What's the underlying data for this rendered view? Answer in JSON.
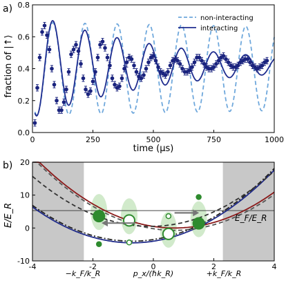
{
  "chart_data": [
    {
      "panel": "a)",
      "type": "line",
      "xlabel": "time (μs)",
      "ylabel": "fraction of |↑⟩",
      "xlim": [
        0,
        1000
      ],
      "ylim": [
        0,
        0.8
      ],
      "x_ticks": [
        0,
        250,
        500,
        750,
        1000
      ],
      "y_ticks": [
        0.0,
        0.2,
        0.4,
        0.6,
        0.8
      ],
      "x_tick_labels": [
        "0",
        "250",
        "500",
        "750",
        "1000"
      ],
      "y_tick_labels": [
        "0.0",
        "0.2",
        "0.4",
        "0.6",
        "0.8"
      ],
      "legend_position": "top-right",
      "series": [
        {
          "name": "non-interacting",
          "style": "dashed",
          "color": "#6fa8dc",
          "model": {
            "base": 0.4,
            "amp": 0.29,
            "decay_us": 10000,
            "freq_per_us": 0.00752,
            "phase": 2.77,
            "t0": 10
          }
        },
        {
          "name": "interacting",
          "style": "solid",
          "color": "#1f2d8f",
          "model": {
            "base": 0.42,
            "amp": 0.32,
            "decay_us": 560,
            "freq_per_us": 0.00752,
            "phase": 2.77,
            "t0": 10
          }
        }
      ],
      "data_points": {
        "color": "#1a237e",
        "x": [
          10,
          20,
          30,
          40,
          50,
          60,
          70,
          80,
          90,
          100,
          110,
          120,
          130,
          140,
          150,
          160,
          170,
          180,
          190,
          200,
          210,
          220,
          230,
          240,
          250,
          260,
          270,
          280,
          290,
          300,
          310,
          320,
          330,
          340,
          350,
          360,
          370,
          380,
          390,
          400,
          410,
          420,
          430,
          440,
          450,
          460,
          470,
          480,
          490,
          500,
          510,
          520,
          530,
          540,
          550,
          560,
          570,
          580,
          590,
          600,
          610,
          620,
          630,
          640,
          650,
          660,
          670,
          680,
          690,
          700,
          710,
          720,
          730,
          740,
          750,
          760,
          770,
          780,
          790,
          800,
          810,
          820,
          830,
          840,
          850,
          860,
          870,
          880,
          890,
          900,
          910,
          920,
          930,
          940,
          950,
          960,
          970
        ],
        "y": [
          0.06,
          0.28,
          0.47,
          0.63,
          0.67,
          0.61,
          0.52,
          0.4,
          0.3,
          0.2,
          0.14,
          0.14,
          0.19,
          0.27,
          0.38,
          0.49,
          0.52,
          0.55,
          0.51,
          0.43,
          0.34,
          0.27,
          0.24,
          0.26,
          0.32,
          0.38,
          0.47,
          0.55,
          0.57,
          0.53,
          0.47,
          0.42,
          0.34,
          0.3,
          0.28,
          0.29,
          0.34,
          0.4,
          0.44,
          0.47,
          0.46,
          0.42,
          0.38,
          0.35,
          0.34,
          0.36,
          0.4,
          0.44,
          0.47,
          0.48,
          0.45,
          0.41,
          0.38,
          0.37,
          0.36,
          0.38,
          0.42,
          0.45,
          0.46,
          0.45,
          0.43,
          0.4,
          0.38,
          0.38,
          0.39,
          0.41,
          0.44,
          0.47,
          0.47,
          0.45,
          0.43,
          0.41,
          0.4,
          0.4,
          0.41,
          0.43,
          0.45,
          0.47,
          0.48,
          0.46,
          0.44,
          0.42,
          0.41,
          0.41,
          0.42,
          0.44,
          0.45,
          0.46,
          0.46,
          0.44,
          0.42,
          0.41,
          0.4,
          0.41,
          0.42,
          0.44,
          0.45
        ],
        "err": [
          0.02,
          0.02,
          0.02,
          0.02,
          0.02,
          0.02,
          0.02,
          0.02,
          0.02,
          0.02,
          0.02,
          0.02,
          0.02,
          0.02,
          0.02,
          0.02,
          0.02,
          0.02,
          0.02,
          0.02,
          0.02,
          0.02,
          0.02,
          0.02,
          0.02,
          0.02,
          0.02,
          0.02,
          0.02,
          0.02,
          0.02,
          0.02,
          0.02,
          0.02,
          0.02,
          0.02,
          0.02,
          0.02,
          0.03,
          0.02,
          0.02,
          0.02,
          0.02,
          0.02,
          0.02,
          0.02,
          0.02,
          0.02,
          0.02,
          0.02,
          0.02,
          0.02,
          0.02,
          0.02,
          0.02,
          0.02,
          0.02,
          0.02,
          0.02,
          0.02,
          0.02,
          0.02,
          0.02,
          0.02,
          0.02,
          0.02,
          0.02,
          0.02,
          0.02,
          0.02,
          0.02,
          0.02,
          0.02,
          0.02,
          0.02,
          0.02,
          0.02,
          0.02,
          0.02,
          0.02,
          0.02,
          0.02,
          0.02,
          0.02,
          0.02,
          0.02,
          0.02,
          0.02,
          0.02,
          0.02,
          0.02,
          0.02,
          0.02,
          0.02,
          0.02,
          0.02,
          0.02
        ]
      }
    },
    {
      "panel": "b)",
      "type": "line",
      "xlabel": "p_x/(ħk_R)",
      "ylabel": "E/E_R",
      "xlim": [
        -4,
        4
      ],
      "ylim": [
        -10,
        20
      ],
      "x_ticks": [
        -4,
        -2,
        0,
        2,
        4
      ],
      "y_ticks": [
        -10,
        0,
        10,
        20
      ],
      "x_tick_labels": [
        "-4",
        "-2",
        "0",
        "2",
        "4"
      ],
      "y_tick_labels": [
        "-10",
        "0",
        "10",
        "20"
      ],
      "kf_value": 2.3,
      "fermi_level": 5.3,
      "fermi_label": "E_F/E_R",
      "kf_labels": [
        "−k_F/k_R",
        "+k_F/k_R"
      ],
      "curves": [
        {
          "name": "upper band",
          "style": "solid",
          "color": "#8b1a1a",
          "a": 1.0,
          "c": 0.7,
          "d": 0.0
        },
        {
          "name": "lower band",
          "style": "solid",
          "color": "#1f2a8a",
          "a": 1.0,
          "c": -0.7,
          "d": -4.5
        },
        {
          "name": "upper band shifted",
          "style": "dashed",
          "color": "#555555",
          "a": 1.0,
          "c": 0.7,
          "d": -0.7
        },
        {
          "name": "lower band shifted",
          "style": "dashdot",
          "color": "#222222",
          "a": 1.0,
          "c": -0.7,
          "d": -4.0
        },
        {
          "name": "free dispersion",
          "style": "dashed",
          "color": "#333333",
          "a": 1.0,
          "c": -0.1,
          "d": 0.5
        }
      ],
      "markers": [
        {
          "x": -1.8,
          "y": 3.6,
          "style": "filled-large"
        },
        {
          "x": -0.8,
          "y": 2.3,
          "style": "open-large"
        },
        {
          "x": 0.5,
          "y": -1.8,
          "style": "open-large"
        },
        {
          "x": 1.5,
          "y": 1.4,
          "style": "filled-large"
        },
        {
          "x": -1.8,
          "y": -4.9,
          "style": "filled-small"
        },
        {
          "x": -0.8,
          "y": -4.4,
          "style": "open-small"
        },
        {
          "x": 0.5,
          "y": 3.6,
          "style": "open-small"
        },
        {
          "x": 1.5,
          "y": 9.4,
          "style": "filled-small"
        }
      ],
      "arrows": [
        {
          "from": [
            -0.6,
            1.5
          ],
          "to": [
            -1.6,
            1.5
          ]
        },
        {
          "from": [
            0.7,
            4.6
          ],
          "to": [
            1.4,
            4.6
          ]
        }
      ],
      "shaded_regions": [
        [
          -4,
          -2.3
        ],
        [
          2.3,
          4
        ]
      ]
    }
  ]
}
